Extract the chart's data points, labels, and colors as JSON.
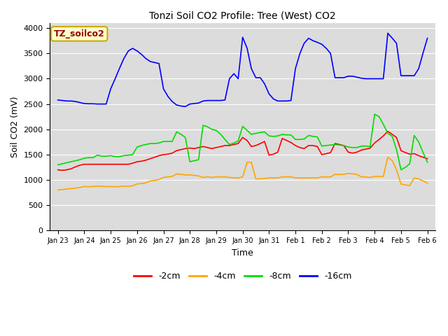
{
  "title": "Tonzi Soil CO2 Profile: Tree (West) CO2",
  "xlabel": "Time",
  "ylabel": "Soil CO2 (mV)",
  "ylim": [
    0,
    4100
  ],
  "yticks": [
    0,
    500,
    1000,
    1500,
    2000,
    2500,
    3000,
    3500,
    4000
  ],
  "background_color": "#dcdcdc",
  "legend_label": "TZ_soilco2",
  "series": {
    "neg2cm": {
      "label": "-2cm",
      "color": "#ff0000",
      "x": [
        0.0,
        0.17,
        0.33,
        0.5,
        0.67,
        0.83,
        1.0,
        1.17,
        1.33,
        1.5,
        1.67,
        1.83,
        2.0,
        2.17,
        2.33,
        2.5,
        2.67,
        2.83,
        3.0,
        3.17,
        3.33,
        3.5,
        3.67,
        3.83,
        4.0,
        4.17,
        4.33,
        4.5,
        4.67,
        4.83,
        5.0,
        5.17,
        5.33,
        5.5,
        5.67,
        5.83,
        6.0,
        6.17,
        6.33,
        6.5,
        6.67,
        6.83,
        7.0,
        7.17,
        7.33,
        7.5,
        7.67,
        7.83,
        8.0,
        8.17,
        8.33,
        8.5,
        8.67,
        8.83,
        9.0,
        9.17,
        9.33,
        9.5,
        9.67,
        9.83,
        10.0,
        10.17,
        10.33,
        10.5,
        10.67,
        10.83,
        11.0,
        11.17,
        11.33,
        11.5,
        11.67,
        11.83,
        12.0,
        12.17,
        12.33,
        12.5,
        12.67,
        12.83,
        13.0,
        13.17,
        13.33,
        13.5,
        13.67,
        13.83,
        14.0
      ],
      "y": [
        1200,
        1190,
        1200,
        1220,
        1260,
        1290,
        1310,
        1310,
        1310,
        1310,
        1310,
        1310,
        1310,
        1310,
        1310,
        1310,
        1310,
        1330,
        1360,
        1370,
        1390,
        1420,
        1450,
        1480,
        1500,
        1510,
        1530,
        1580,
        1600,
        1620,
        1630,
        1620,
        1640,
        1660,
        1640,
        1620,
        1640,
        1660,
        1680,
        1680,
        1700,
        1720,
        1840,
        1780,
        1660,
        1680,
        1720,
        1760,
        1490,
        1510,
        1550,
        1820,
        1780,
        1740,
        1680,
        1640,
        1620,
        1680,
        1680,
        1660,
        1500,
        1520,
        1540,
        1720,
        1700,
        1680,
        1550,
        1530,
        1550,
        1590,
        1610,
        1630,
        1730,
        1800,
        1870,
        1960,
        1900,
        1840,
        1580,
        1540,
        1510,
        1520,
        1480,
        1450,
        1420
      ]
    },
    "neg4cm": {
      "label": "-4cm",
      "color": "#ffa500",
      "x": [
        0.0,
        0.17,
        0.33,
        0.5,
        0.67,
        0.83,
        1.0,
        1.17,
        1.33,
        1.5,
        1.67,
        1.83,
        2.0,
        2.17,
        2.33,
        2.5,
        2.67,
        2.83,
        3.0,
        3.17,
        3.33,
        3.5,
        3.67,
        3.83,
        4.0,
        4.17,
        4.33,
        4.5,
        4.67,
        4.83,
        5.0,
        5.17,
        5.33,
        5.5,
        5.67,
        5.83,
        6.0,
        6.17,
        6.33,
        6.5,
        6.67,
        6.83,
        7.0,
        7.17,
        7.33,
        7.5,
        7.67,
        7.83,
        8.0,
        8.17,
        8.33,
        8.5,
        8.67,
        8.83,
        9.0,
        9.17,
        9.33,
        9.5,
        9.67,
        9.83,
        10.0,
        10.17,
        10.33,
        10.5,
        10.67,
        10.83,
        11.0,
        11.17,
        11.33,
        11.5,
        11.67,
        11.83,
        12.0,
        12.17,
        12.33,
        12.5,
        12.67,
        12.83,
        13.0,
        13.17,
        13.33,
        13.5,
        13.67,
        13.83,
        14.0
      ],
      "y": [
        800,
        810,
        820,
        830,
        840,
        850,
        870,
        865,
        870,
        880,
        875,
        870,
        870,
        865,
        870,
        880,
        875,
        885,
        920,
        930,
        940,
        980,
        990,
        1010,
        1050,
        1060,
        1070,
        1120,
        1110,
        1100,
        1100,
        1090,
        1080,
        1050,
        1060,
        1050,
        1060,
        1060,
        1060,
        1050,
        1040,
        1040,
        1060,
        1350,
        1350,
        1020,
        1020,
        1030,
        1040,
        1040,
        1040,
        1060,
        1060,
        1060,
        1040,
        1040,
        1040,
        1040,
        1040,
        1040,
        1060,
        1060,
        1060,
        1110,
        1110,
        1110,
        1130,
        1120,
        1110,
        1060,
        1060,
        1050,
        1070,
        1070,
        1070,
        1450,
        1380,
        1200,
        920,
        900,
        890,
        1040,
        1020,
        980,
        940
      ]
    },
    "neg8cm": {
      "label": "-8cm",
      "color": "#00dd00",
      "x": [
        0.0,
        0.17,
        0.33,
        0.5,
        0.67,
        0.83,
        1.0,
        1.17,
        1.33,
        1.5,
        1.67,
        1.83,
        2.0,
        2.17,
        2.33,
        2.5,
        2.67,
        2.83,
        3.0,
        3.17,
        3.33,
        3.5,
        3.67,
        3.83,
        4.0,
        4.17,
        4.33,
        4.5,
        4.67,
        4.83,
        5.0,
        5.17,
        5.33,
        5.5,
        5.67,
        5.83,
        6.0,
        6.17,
        6.33,
        6.5,
        6.67,
        6.83,
        7.0,
        7.17,
        7.33,
        7.5,
        7.67,
        7.83,
        8.0,
        8.17,
        8.33,
        8.5,
        8.67,
        8.83,
        9.0,
        9.17,
        9.33,
        9.5,
        9.67,
        9.83,
        10.0,
        10.17,
        10.33,
        10.5,
        10.67,
        10.83,
        11.0,
        11.17,
        11.33,
        11.5,
        11.67,
        11.83,
        12.0,
        12.17,
        12.33,
        12.5,
        12.67,
        12.83,
        13.0,
        13.17,
        13.33,
        13.5,
        13.67,
        13.83,
        14.0
      ],
      "y": [
        1300,
        1320,
        1340,
        1360,
        1380,
        1400,
        1430,
        1440,
        1440,
        1490,
        1470,
        1470,
        1480,
        1460,
        1460,
        1480,
        1490,
        1500,
        1650,
        1680,
        1700,
        1720,
        1720,
        1730,
        1760,
        1760,
        1760,
        1950,
        1900,
        1840,
        1360,
        1380,
        1400,
        2080,
        2050,
        2000,
        1980,
        1900,
        1800,
        1700,
        1730,
        1770,
        2060,
        1980,
        1900,
        1920,
        1940,
        1950,
        1870,
        1860,
        1870,
        1900,
        1890,
        1890,
        1800,
        1800,
        1810,
        1880,
        1860,
        1850,
        1670,
        1680,
        1690,
        1700,
        1690,
        1680,
        1650,
        1640,
        1640,
        1670,
        1670,
        1660,
        2300,
        2250,
        2100,
        1920,
        1860,
        1600,
        1200,
        1250,
        1320,
        1880,
        1750,
        1550,
        1350
      ]
    },
    "neg16cm": {
      "label": "-16cm",
      "color": "#0000ff",
      "x": [
        0.0,
        0.17,
        0.33,
        0.5,
        0.67,
        0.83,
        1.0,
        1.17,
        1.33,
        1.5,
        1.67,
        1.83,
        2.0,
        2.17,
        2.33,
        2.5,
        2.67,
        2.83,
        3.0,
        3.17,
        3.33,
        3.5,
        3.67,
        3.83,
        4.0,
        4.17,
        4.33,
        4.5,
        4.67,
        4.83,
        5.0,
        5.17,
        5.33,
        5.5,
        5.67,
        5.83,
        6.0,
        6.17,
        6.33,
        6.5,
        6.67,
        6.83,
        7.0,
        7.17,
        7.33,
        7.5,
        7.67,
        7.83,
        8.0,
        8.17,
        8.33,
        8.5,
        8.67,
        8.83,
        9.0,
        9.17,
        9.33,
        9.5,
        9.67,
        9.83,
        10.0,
        10.17,
        10.33,
        10.5,
        10.67,
        10.83,
        11.0,
        11.17,
        11.33,
        11.5,
        11.67,
        11.83,
        12.0,
        12.17,
        12.33,
        12.5,
        12.67,
        12.83,
        13.0,
        13.17,
        13.33,
        13.5,
        13.67,
        13.83,
        14.0
      ],
      "y": [
        2580,
        2570,
        2560,
        2560,
        2550,
        2530,
        2510,
        2505,
        2505,
        2500,
        2500,
        2500,
        2800,
        3000,
        3200,
        3400,
        3550,
        3600,
        3550,
        3480,
        3400,
        3340,
        3320,
        3300,
        2800,
        2650,
        2550,
        2480,
        2460,
        2450,
        2500,
        2510,
        2520,
        2560,
        2570,
        2570,
        2570,
        2570,
        2580,
        3000,
        3100,
        3000,
        3820,
        3600,
        3200,
        3020,
        3020,
        2900,
        2700,
        2600,
        2560,
        2560,
        2560,
        2570,
        3200,
        3500,
        3700,
        3800,
        3750,
        3720,
        3680,
        3600,
        3500,
        3020,
        3020,
        3020,
        3050,
        3050,
        3030,
        3010,
        3000,
        3000,
        3000,
        3000,
        3000,
        3900,
        3800,
        3700,
        3060,
        3060,
        3060,
        3060,
        3200,
        3500,
        3800
      ]
    }
  },
  "xtick_labels": [
    "Jan 23",
    "Jan 24",
    "Jan 25",
    "Jan 26",
    "Jan 27",
    "Jan 28",
    "Jan 29",
    "Jan 30",
    "Jan 31",
    "Feb 1",
    "Feb 2",
    "Feb 3",
    "Feb 4",
    "Feb 5",
    "Feb 6"
  ],
  "xtick_positions": [
    0,
    1,
    2,
    3,
    4,
    5,
    6,
    7,
    8,
    9,
    10,
    11,
    12,
    13,
    14
  ]
}
